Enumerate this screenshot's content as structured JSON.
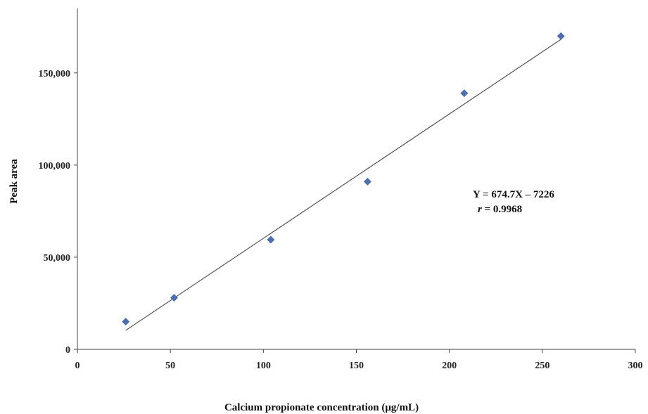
{
  "chart_data": {
    "type": "scatter",
    "title": "",
    "xlabel": "Calcium propionate concentration (μg/mL)",
    "ylabel": "Peak area",
    "xlim": [
      0,
      300
    ],
    "ylim": [
      0,
      175000
    ],
    "x_ticks": [
      0,
      50,
      100,
      150,
      200,
      250,
      300
    ],
    "x_tick_labels": [
      "0",
      "50",
      "100",
      "150",
      "200",
      "250",
      "300"
    ],
    "y_ticks": [
      0,
      50000,
      100000,
      150000
    ],
    "y_tick_labels": [
      "0",
      "50,000",
      "100,000",
      "150,000"
    ],
    "grid": false,
    "series": [
      {
        "marker": "diamond",
        "color": "#4a6fb5",
        "points": [
          {
            "x": 26,
            "y": 15000
          },
          {
            "x": 52,
            "y": 28000
          },
          {
            "x": 104,
            "y": 59500
          },
          {
            "x": 156,
            "y": 91000
          },
          {
            "x": 208,
            "y": 139000
          },
          {
            "x": 260,
            "y": 170000
          }
        ]
      }
    ],
    "trendline": {
      "color": "#555555",
      "slope": 674.7,
      "intercept": -7226,
      "x_range": [
        26,
        260
      ]
    },
    "annotations": {
      "equation": "Y = 674.7X – 7226",
      "r_symbol": "r",
      "r_value": "= 0.9968"
    }
  }
}
